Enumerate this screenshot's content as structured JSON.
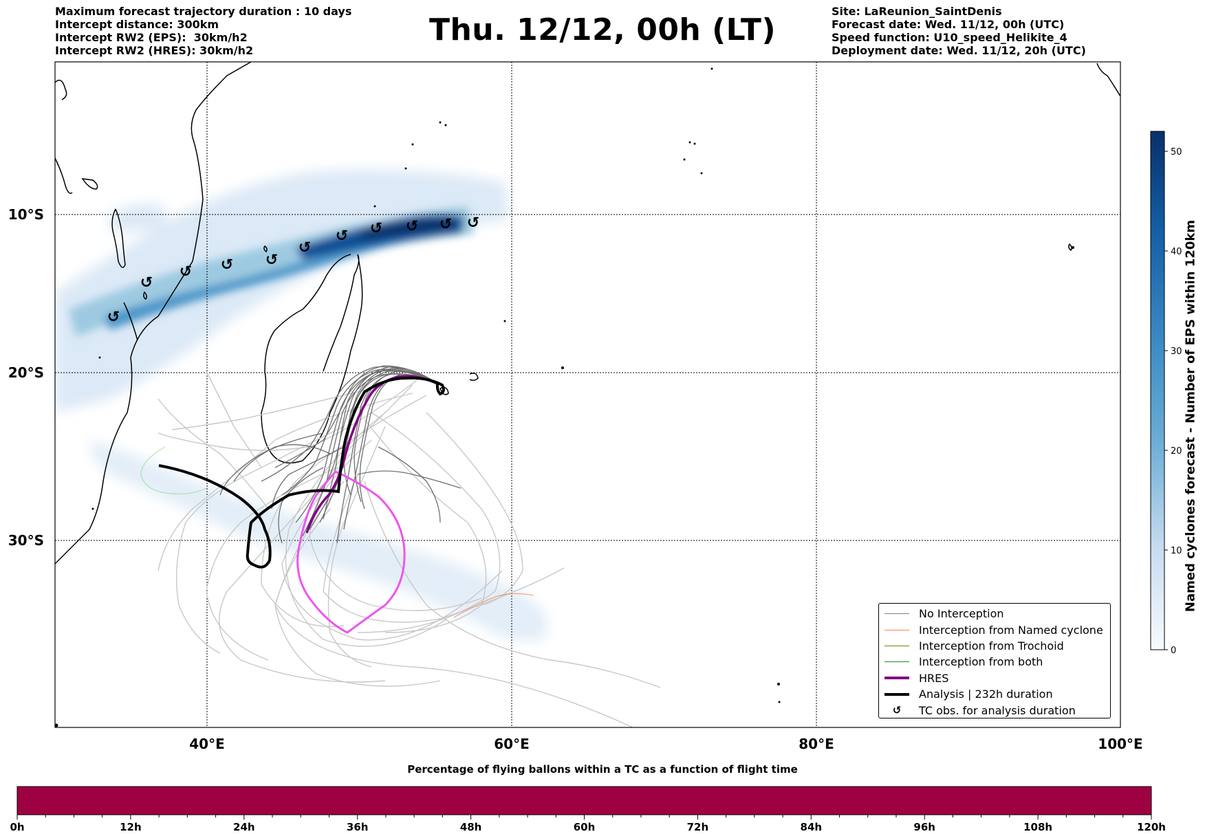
{
  "header": {
    "left_lines": [
      "Maximum forecast trajectory duration : 10 days",
      "Intercept distance: 300km",
      "Intercept RW2 (EPS):  30km/h2",
      "Intercept RW2 (HRES): 30km/h2"
    ],
    "title": "Thu. 12/12, 00h (LT)",
    "right_lines": [
      "Site: LaReunion_SaintDenis",
      "Forecast date: Wed. 11/12, 00h (UTC)",
      "Speed function: U10_speed_Helikite_4",
      "Deployment date: Wed. 11/12, 20h (UTC)"
    ]
  },
  "map": {
    "lat_labels": [
      "10°S",
      "20°S",
      "30°S"
    ],
    "lon_labels": [
      "40°E",
      "60°E",
      "80°E",
      "100°E"
    ],
    "tc_symbol": "↺",
    "tc_obs_count": 12
  },
  "legend": {
    "items": [
      {
        "label": "No Interception",
        "color": "#7f7f7f",
        "width": 1.5
      },
      {
        "label": "Interception from Named cyclone",
        "color": "#ff7f50",
        "width": 1.5
      },
      {
        "label": "Interception from Trochoid",
        "color": "#808000",
        "width": 1.5
      },
      {
        "label": "Interception from both",
        "color": "#228b22",
        "width": 1.5
      },
      {
        "label": "HRES",
        "color": "#800080",
        "width": 4
      },
      {
        "label": "Analysis | 232h duration",
        "color": "#000000",
        "width": 4
      }
    ],
    "tc_label": "TC obs. for analysis duration"
  },
  "colorbar": {
    "title": "Named cyclones forecast - Number of EPS within 120km",
    "ticks": [
      "0",
      "10",
      "20",
      "30",
      "40",
      "50"
    ],
    "colormap": "Blues"
  },
  "timebar": {
    "title": "Percentage of flying ballons within a TC as a function of flight time",
    "ticks": [
      "0h",
      "12h",
      "24h",
      "36h",
      "48h",
      "60h",
      "72h",
      "84h",
      "96h",
      "108h",
      "120h"
    ],
    "fill_color": "#9e0142",
    "percent_in_tc": 0
  },
  "colors": {
    "coast": "#000000",
    "hres": "#800080",
    "analysis": "#000000",
    "ensemble": "#7f7f7f",
    "ensemble_light": "#c8c8c8",
    "pink_track": "#ee55ee",
    "named_cyclone_track": "#ff7f50"
  }
}
